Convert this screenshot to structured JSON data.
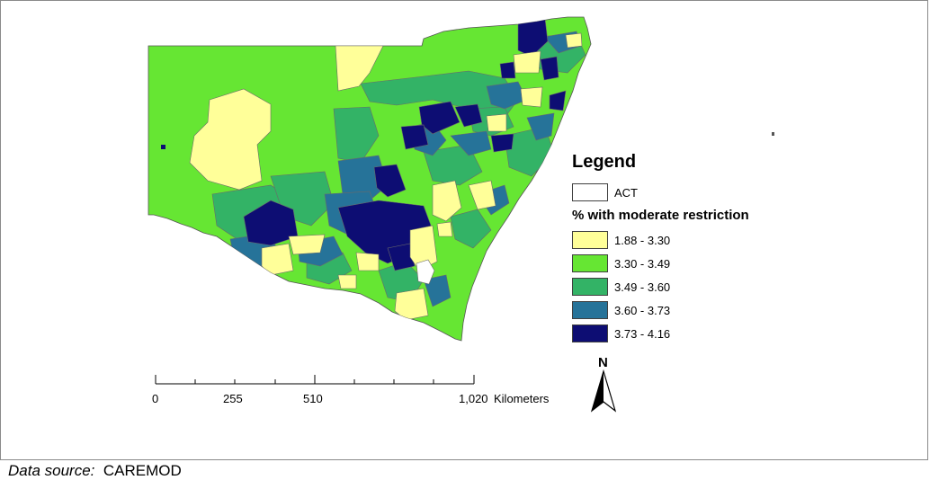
{
  "legend": {
    "title": "Legend",
    "act": {
      "label": "ACT",
      "color": "#ffffff"
    },
    "subtitle": "% with moderate restriction",
    "classes": [
      {
        "label": "1.88 - 3.30",
        "color": "#ffff99"
      },
      {
        "label": "3.30 - 3.49",
        "color": "#66e633"
      },
      {
        "label": "3.49 - 3.60",
        "color": "#33b366"
      },
      {
        "label": "3.60 - 3.73",
        "color": "#267399"
      },
      {
        "label": "3.73 - 4.16",
        "color": "#0d0d73"
      }
    ]
  },
  "scale_bar": {
    "labels": [
      "0",
      "255",
      "510",
      "1,020"
    ],
    "unit": "Kilometers"
  },
  "north_arrow": {
    "label": "N"
  },
  "source": {
    "label": "Data source:",
    "value": "CAREMOD"
  }
}
